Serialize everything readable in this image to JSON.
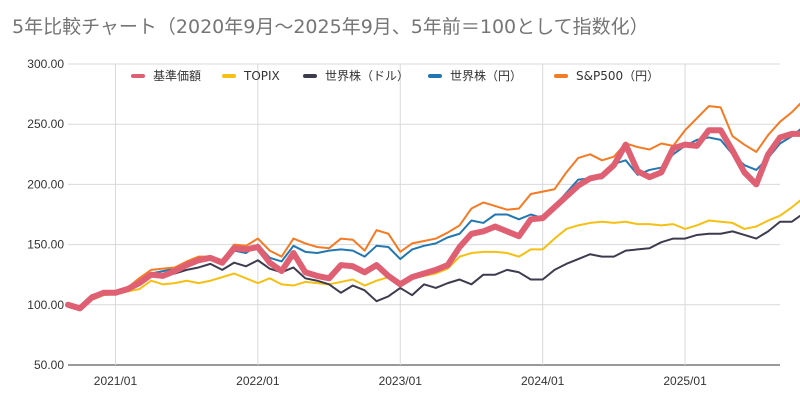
{
  "title": "5年比較チャート（2020年9月～2025年9月、5年前＝100として指数化）",
  "chart_data": {
    "type": "line",
    "title": "5年比較チャート（2020年9月～2025年9月、5年前＝100として指数化）",
    "xlabel": "",
    "ylabel": "",
    "ylim": [
      50,
      300
    ],
    "yticks": [
      "50.00",
      "100.00",
      "150.00",
      "200.00",
      "250.00",
      "300.00"
    ],
    "xticks": [
      "2021/01",
      "2022/01",
      "2023/01",
      "2024/01",
      "2025/01"
    ],
    "x_tick_months": [
      4,
      16,
      28,
      40,
      52
    ],
    "x_range": [
      0,
      60
    ],
    "grid": true,
    "legend_position": "top",
    "series": [
      {
        "name": "基準価額",
        "color": "#e06073",
        "values": [
          100,
          97,
          106,
          110,
          110,
          113,
          118,
          125,
          124,
          128,
          133,
          137,
          139,
          135,
          147,
          146,
          148,
          135,
          128,
          143,
          127,
          124,
          122,
          133,
          132,
          127,
          133,
          124,
          117,
          123,
          126,
          129,
          133,
          148,
          159,
          161,
          165,
          161,
          157,
          171,
          172,
          181,
          190,
          199,
          205,
          207,
          216,
          233,
          211,
          206,
          210,
          230,
          233,
          232,
          245,
          245,
          228,
          210,
          200,
          225,
          239,
          242,
          242
        ]
      },
      {
        "name": "TOPIX",
        "color": "#f5c013",
        "values": [
          100,
          97,
          104,
          108,
          109,
          111,
          113,
          120,
          117,
          118,
          120,
          118,
          120,
          123,
          126,
          122,
          118,
          122,
          117,
          116,
          119,
          118,
          117,
          119,
          121,
          116,
          120,
          123,
          117,
          122,
          124,
          126,
          130,
          140,
          143,
          144,
          144,
          143,
          140,
          146,
          146,
          155,
          163,
          166,
          168,
          169,
          168,
          169,
          167,
          167,
          166,
          167,
          163,
          166,
          170,
          169,
          168,
          163,
          165,
          170,
          174,
          181,
          189
        ]
      },
      {
        "name": "世界株（ドル）",
        "color": "#3d3c4e",
        "values": [
          100,
          97,
          108,
          110,
          111,
          113,
          117,
          124,
          125,
          126,
          129,
          131,
          134,
          129,
          135,
          132,
          137,
          130,
          127,
          131,
          122,
          120,
          117,
          110,
          116,
          112,
          103,
          107,
          114,
          108,
          117,
          114,
          118,
          121,
          117,
          125,
          125,
          129,
          127,
          121,
          121,
          129,
          134,
          138,
          142,
          140,
          140,
          145,
          146,
          147,
          152,
          155,
          155,
          158,
          159,
          159,
          161,
          158,
          155,
          161,
          169,
          169,
          176
        ]
      },
      {
        "name": "世界株（円）",
        "color": "#2377b0",
        "values": [
          100,
          96,
          107,
          111,
          110,
          113,
          120,
          126,
          128,
          130,
          134,
          138,
          140,
          136,
          145,
          143,
          150,
          139,
          136,
          149,
          144,
          143,
          145,
          146,
          145,
          140,
          149,
          148,
          138,
          146,
          149,
          151,
          156,
          159,
          170,
          168,
          175,
          175,
          171,
          175,
          172,
          182,
          193,
          204,
          205,
          205,
          217,
          220,
          208,
          212,
          214,
          225,
          232,
          237,
          239,
          237,
          225,
          216,
          212,
          222,
          234,
          240,
          248
        ]
      },
      {
        "name": "S&P500（円）",
        "color": "#f57a24",
        "values": [
          100,
          98,
          108,
          111,
          111,
          114,
          122,
          129,
          130,
          131,
          136,
          140,
          140,
          137,
          150,
          149,
          155,
          145,
          140,
          155,
          151,
          148,
          147,
          155,
          154,
          145,
          162,
          159,
          144,
          151,
          153,
          155,
          160,
          166,
          180,
          185,
          182,
          179,
          180,
          192,
          194,
          196,
          210,
          222,
          225,
          220,
          223,
          234,
          231,
          229,
          234,
          232,
          245,
          255,
          265,
          264,
          240,
          233,
          227,
          241,
          252,
          260,
          270
        ]
      }
    ]
  }
}
